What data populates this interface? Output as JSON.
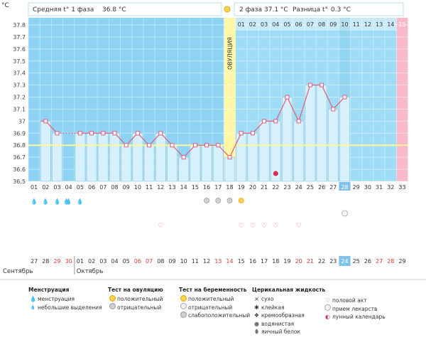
{
  "header": {
    "unit": "°C",
    "phase1_label": "Средняя t° 1 фаза",
    "phase1_value": "36.8 °C",
    "phase2_label": "2 фаза",
    "phase2_value": "37.1 °C",
    "diff_label": "Разница t°",
    "diff_value": "0.3 °C"
  },
  "ovulation_label": "ОВУЛЯЦИЯ",
  "post_ovulation_days": [
    "01",
    "02",
    "03",
    "04",
    "05",
    "06",
    "07",
    "08",
    "09",
    "10",
    "11",
    "12",
    "13",
    "14",
    "15"
  ],
  "cycle_days": [
    "01",
    "02",
    "03",
    "04",
    "05",
    "06",
    "07",
    "08",
    "09",
    "10",
    "11",
    "12",
    "13",
    "14",
    "15",
    "16",
    "17",
    "18",
    "19",
    "20",
    "21",
    "22",
    "23",
    "24",
    "25",
    "26",
    "27",
    "28",
    "29",
    "30",
    "31",
    "32",
    "33"
  ],
  "current_day": "28",
  "calendar_dates": [
    "27",
    "28",
    "29",
    "30",
    "01",
    "02",
    "03",
    "04",
    "05",
    "06",
    "07",
    "08",
    "09",
    "10",
    "11",
    "12",
    "13",
    "14",
    "15",
    "16",
    "17",
    "18",
    "19",
    "20",
    "21",
    "22",
    "23",
    "24",
    "25",
    "26",
    "27",
    "28",
    "29"
  ],
  "weekend_dates": [
    2,
    3,
    9,
    10,
    16,
    17,
    23,
    24,
    30,
    31
  ],
  "current_date": "24",
  "months": [
    "Сентябрь",
    "Октябрь"
  ],
  "chart_data": {
    "type": "line",
    "ylabel": "°C",
    "ylim": [
      36.5,
      37.8
    ],
    "yticks": [
      "37.8",
      "37.7",
      "37.6",
      "37.5",
      "37.4",
      "37.3",
      "37.2",
      "37.1",
      "37",
      "36.9",
      "36.8",
      "36.7",
      "36.6",
      "36.5"
    ],
    "coverline": 36.8,
    "ovulation_day": 18,
    "series": [
      {
        "values": [
          null,
          37.0,
          36.9,
          null,
          36.9,
          36.9,
          36.9,
          36.9,
          36.8,
          36.9,
          36.8,
          36.9,
          36.8,
          36.7,
          36.8,
          36.8,
          36.8,
          36.7,
          36.9,
          36.9,
          37.0,
          37.0,
          37.2,
          37.0,
          37.3,
          37.3,
          37.1,
          37.2,
          null,
          null,
          null,
          null,
          null
        ]
      }
    ]
  },
  "markers": {
    "menstruation_days": [
      1,
      2,
      3,
      4,
      5
    ],
    "heavy_days": [
      4
    ],
    "ovulation_test_negative_days": [
      16,
      17,
      18
    ],
    "ovulation_test_positive_days": [
      19
    ],
    "intercourse_days": [
      12,
      19,
      20,
      21,
      22,
      24
    ],
    "lunar_day": 22,
    "medication_day": 28
  },
  "legend": {
    "menstruation": {
      "title": "Менструация",
      "items": [
        "менструация",
        "небольшие выделения"
      ]
    },
    "ovulation_test": {
      "title": "Тест на овуляцию",
      "items": [
        "положительный",
        "отрицательный"
      ]
    },
    "pregnancy_test": {
      "title": "Тест на беременность",
      "items": [
        "положительный",
        "отрицательный",
        "слабоположительный"
      ]
    },
    "cervical": {
      "title": "Церикальная жидкость",
      "items": [
        "сухо",
        "клейкая",
        "кремообразная",
        "водянистая",
        "яичный белок"
      ]
    },
    "other": {
      "items": [
        "половой акт",
        "прием лекарств",
        "лунный календарь"
      ]
    }
  },
  "colors": {
    "plot_bg": "#8fd3f4",
    "plot_bg_post": "#9fdcf6",
    "bar_fill": "#d6f0fc",
    "bar_stroke": "#8ec4dc",
    "line": "#e05c7a",
    "coverline": "#fff59a",
    "ovulation": "#fff6a8",
    "last_day": "#f8b9c9",
    "current": "#7ec3e6"
  }
}
